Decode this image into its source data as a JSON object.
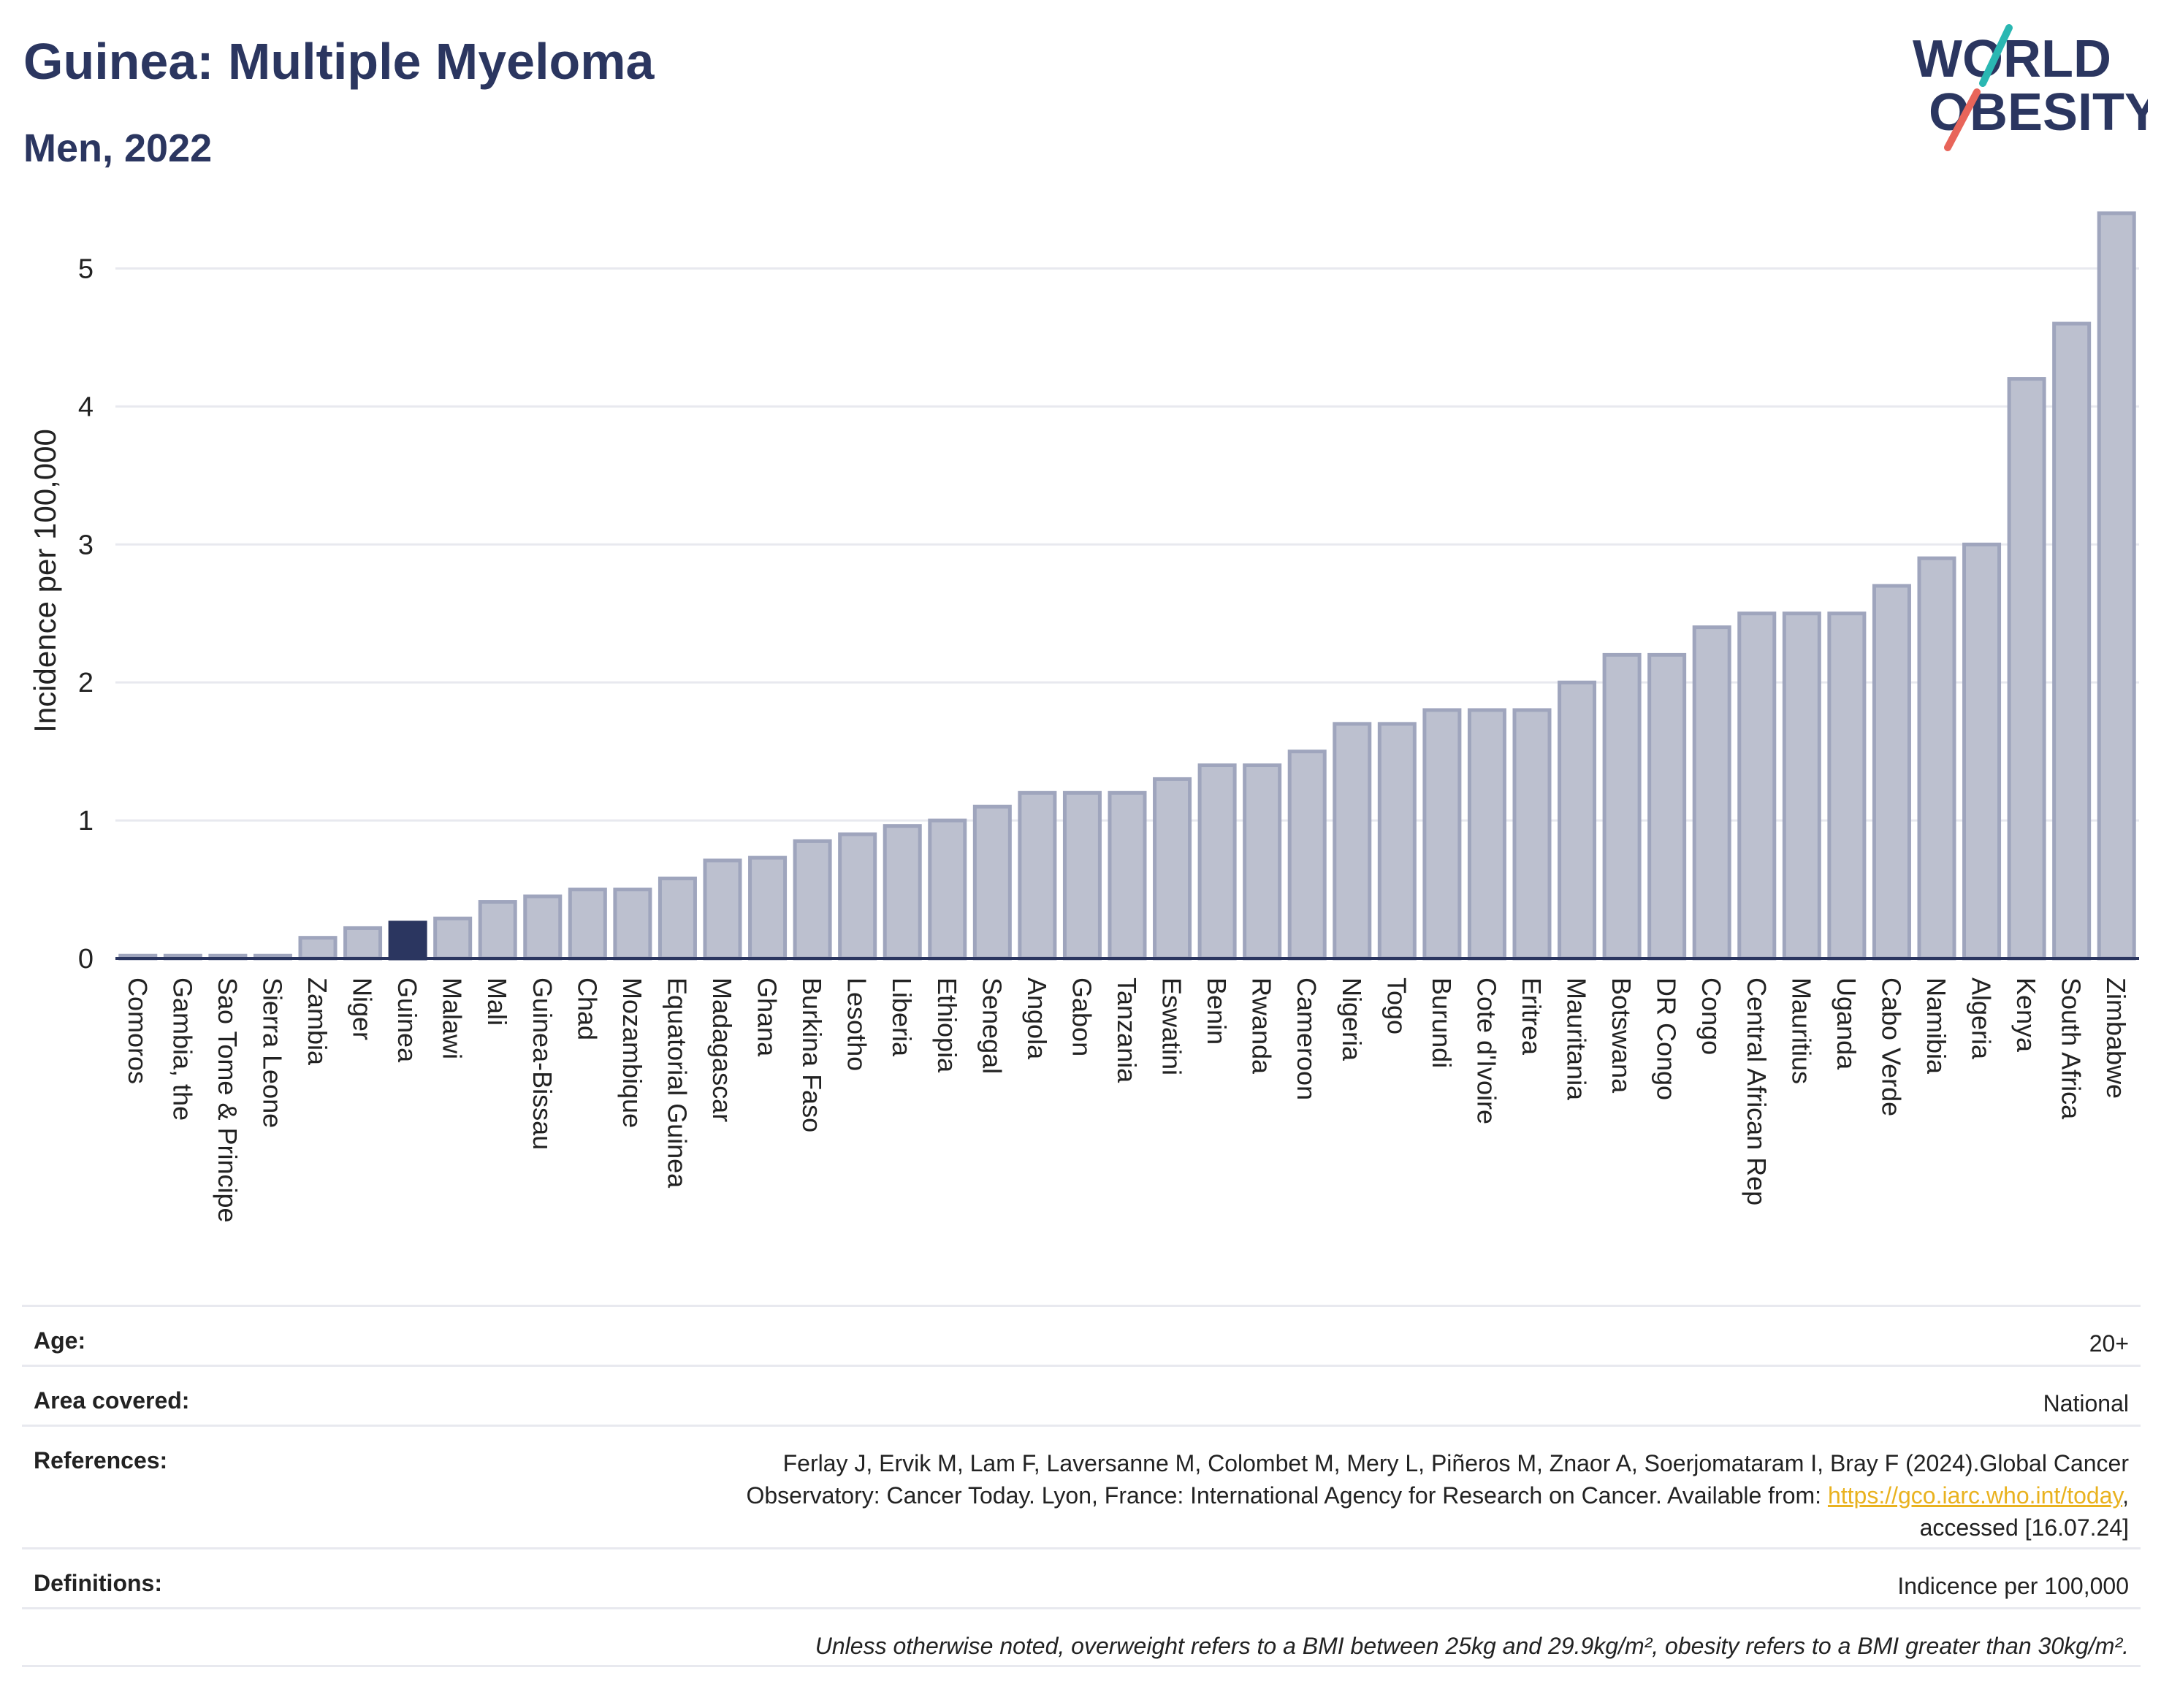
{
  "header": {
    "title": "Guinea: Multiple Myeloma",
    "subtitle": "Men, 2022"
  },
  "logo": {
    "line1": "WORLD",
    "line2": "OBESITY",
    "accent_teal": "#2ab7b2",
    "accent_red": "#e8655a"
  },
  "colors": {
    "bar": "#bcc0cf",
    "bar_border": "#9fa5bd",
    "highlight": "#2b3660",
    "grid": "#e8e9ef",
    "axis": "#2b3660"
  },
  "chart_data": {
    "type": "bar",
    "title": "Guinea: Multiple Myeloma",
    "subtitle": "Men, 2022",
    "ylabel": "Incidence per 100,000",
    "ylim": [
      0,
      5.5
    ],
    "yticks": [
      0,
      1,
      2,
      3,
      4,
      5
    ],
    "highlight": "Guinea",
    "categories": [
      "Comoros",
      "Gambia, the",
      "Sao Tome & Principe",
      "Sierra Leone",
      "Zambia",
      "Niger",
      "Guinea",
      "Malawi",
      "Mali",
      "Guinea-Bissau",
      "Chad",
      "Mozambique",
      "Equatorial Guinea",
      "Madagascar",
      "Ghana",
      "Burkina Faso",
      "Lesotho",
      "Liberia",
      "Ethiopia",
      "Senegal",
      "Angola",
      "Gabon",
      "Tanzania",
      "Eswatini",
      "Benin",
      "Rwanda",
      "Cameroon",
      "Nigeria",
      "Togo",
      "Burundi",
      "Cote d'Ivoire",
      "Eritrea",
      "Mauritania",
      "Botswana",
      "DR Congo",
      "Congo",
      "Central African Rep",
      "Mauritius",
      "Uganda",
      "Cabo Verde",
      "Namibia",
      "Algeria",
      "Kenya",
      "South Africa",
      "Zimbabwe"
    ],
    "values": [
      0.02,
      0.02,
      0.02,
      0.02,
      0.15,
      0.22,
      0.26,
      0.29,
      0.41,
      0.45,
      0.5,
      0.5,
      0.58,
      0.71,
      0.73,
      0.85,
      0.9,
      0.96,
      1.0,
      1.1,
      1.2,
      1.2,
      1.2,
      1.3,
      1.4,
      1.4,
      1.5,
      1.7,
      1.7,
      1.8,
      1.8,
      1.8,
      2.0,
      2.2,
      2.2,
      2.4,
      2.5,
      2.5,
      2.5,
      2.7,
      2.9,
      3.0,
      4.2,
      4.6,
      5.4
    ]
  },
  "info": {
    "age_label": "Age:",
    "age_value": "20+",
    "area_label": "Area covered:",
    "area_value": "National",
    "ref_label": "References:",
    "ref_line1": "Ferlay J, Ervik M, Lam F, Laversanne M, Colombet M, Mery L, Piñeros M, Znaor A, Soerjomataram I, Bray F (2024).Global Cancer",
    "ref_line2_pre": "Observatory: Cancer Today. Lyon, France: International Agency for Research on Cancer. Available from: ",
    "ref_link": "https://gco.iarc.who.int/today",
    "ref_line2_post": ",",
    "ref_line3": "accessed [16.07.24]",
    "def_label": "Definitions:",
    "def_value": "Indicence per 100,000",
    "note": "Unless otherwise noted, overweight refers to a BMI between 25kg and 29.9kg/m², obesity refers to a BMI greater than 30kg/m²."
  }
}
